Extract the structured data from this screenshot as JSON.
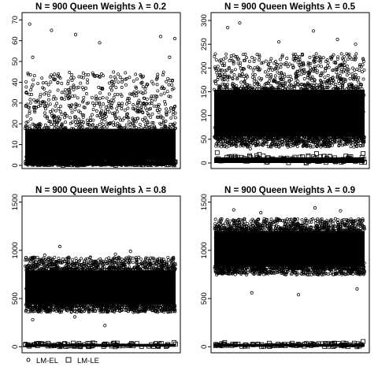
{
  "figure": {
    "legend": [
      {
        "label": "LM-EL",
        "marker": "circle-icon"
      },
      {
        "label": "LM-LE",
        "marker": "square-icon"
      }
    ]
  },
  "chart_data": [
    {
      "type": "scatter",
      "title": "N = 900  Queen  Weights  λ = 0.2",
      "ylim": [
        0,
        72
      ],
      "yticks": [
        0,
        10,
        20,
        30,
        40,
        50,
        60,
        70
      ],
      "xlim": [
        1,
        10000
      ],
      "grid": false,
      "series": [
        {
          "name": "LM-EL",
          "marker": "circle",
          "n": 10000,
          "bulk_range": [
            0,
            20
          ],
          "spread_to": 45,
          "outliers": [
            [
              300,
              68
            ],
            [
              1750,
              65
            ],
            [
              4950,
              59
            ],
            [
              3350,
              63
            ],
            [
              9000,
              62
            ],
            [
              9950,
              61
            ],
            [
              500,
              52
            ],
            [
              9600,
              52
            ]
          ]
        },
        {
          "name": "LM-LE",
          "marker": "square",
          "n": 10000,
          "bulk_range": [
            0,
            2
          ]
        }
      ]
    },
    {
      "type": "scatter",
      "title": "N = 900  Queen  Weights  λ = 0.5",
      "ylim": [
        -5,
        310
      ],
      "yticks": [
        0,
        50,
        100,
        150,
        200,
        250,
        300
      ],
      "xlim": [
        1,
        10000
      ],
      "grid": false,
      "series": [
        {
          "name": "LM-EL",
          "marker": "circle",
          "n": 10000,
          "bulk_range": [
            40,
            170
          ],
          "spread_to": 230,
          "outliers": [
            [
              1700,
              295
            ],
            [
              6600,
              278
            ],
            [
              900,
              285
            ],
            [
              8200,
              260
            ],
            [
              9400,
              250
            ],
            [
              4300,
              255
            ],
            [
              2400,
              30
            ],
            [
              7400,
              35
            ]
          ]
        },
        {
          "name": "LM-LE",
          "marker": "square",
          "n": 10000,
          "bulk_range": [
            0,
            12
          ],
          "outliers": [
            [
              200,
              22
            ],
            [
              9900,
              20
            ],
            [
              3000,
              18
            ],
            [
              6800,
              20
            ]
          ]
        }
      ]
    },
    {
      "type": "scatter",
      "title": "N = 900  Queen  Weights  λ = 0.8",
      "ylim": [
        -30,
        1530
      ],
      "yticks": [
        0,
        500,
        1000,
        1500
      ],
      "xlim": [
        1,
        10000
      ],
      "grid": false,
      "series": [
        {
          "name": "LM-EL",
          "marker": "circle",
          "n": 10000,
          "bulk_range": [
            380,
            850
          ],
          "spread_to": 930,
          "outliers": [
            [
              2300,
              1040
            ],
            [
              1300,
              950
            ],
            [
              6000,
              960
            ],
            [
              7000,
              990
            ],
            [
              500,
              280
            ],
            [
              5300,
              220
            ],
            [
              3300,
              310
            ]
          ]
        },
        {
          "name": "LM-LE",
          "marker": "square",
          "n": 10000,
          "bulk_range": [
            0,
            30
          ],
          "outliers": [
            [
              9900,
              45
            ],
            [
              4500,
              40
            ]
          ]
        }
      ]
    },
    {
      "type": "scatter",
      "title": "N = 900  Queen  Weights  λ = 0.9",
      "ylim": [
        -30,
        1530
      ],
      "yticks": [
        0,
        500,
        1000,
        1500
      ],
      "xlim": [
        1,
        10000
      ],
      "grid": false,
      "series": [
        {
          "name": "LM-EL",
          "marker": "circle",
          "n": 10000,
          "bulk_range": [
            770,
            1260
          ],
          "spread_to": 1330,
          "outliers": [
            [
              6700,
              1440
            ],
            [
              1300,
              1420
            ],
            [
              8400,
              1410
            ],
            [
              3100,
              1390
            ],
            [
              5600,
              540
            ],
            [
              2500,
              560
            ],
            [
              9500,
              600
            ]
          ]
        },
        {
          "name": "LM-LE",
          "marker": "square",
          "n": 10000,
          "bulk_range": [
            0,
            30
          ],
          "outliers": [
            [
              9900,
              55
            ],
            [
              700,
              45
            ]
          ]
        }
      ]
    }
  ]
}
